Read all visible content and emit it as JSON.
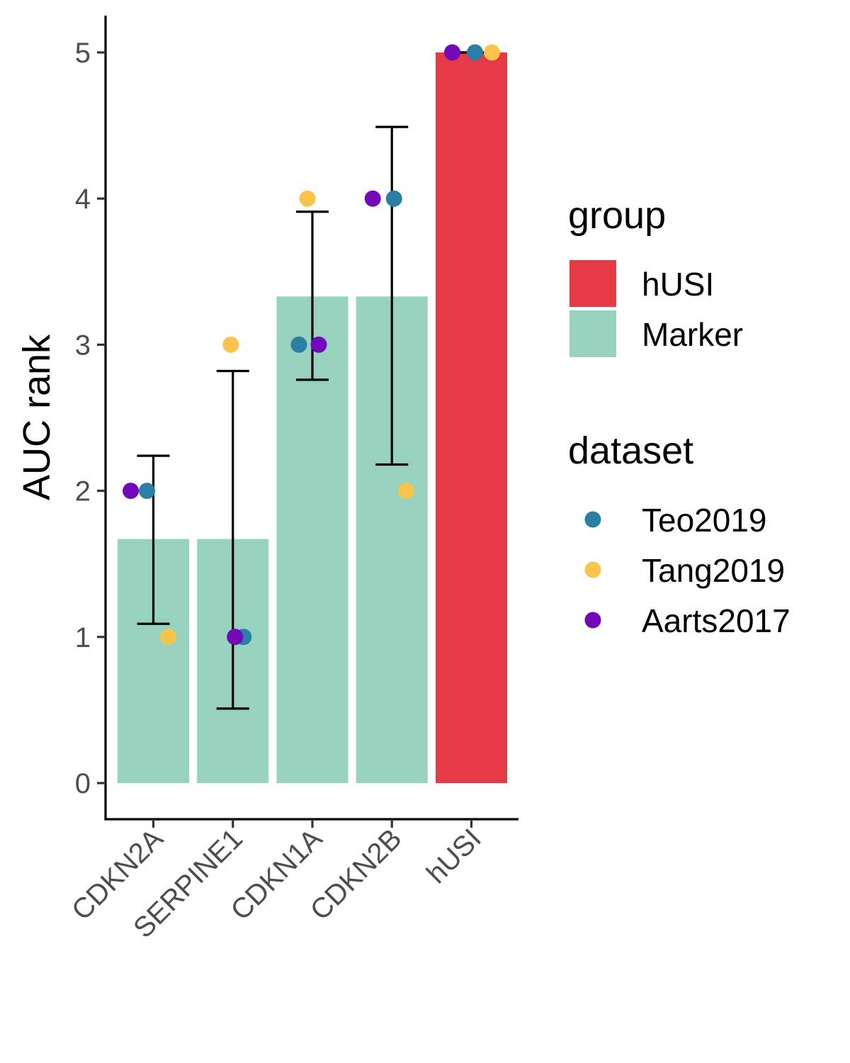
{
  "chart_data": {
    "type": "bar",
    "title": "",
    "xlabel": "",
    "ylabel": "AUC rank",
    "ylim": [
      0,
      5
    ],
    "yticks": [
      0,
      1,
      2,
      3,
      4,
      5
    ],
    "grid": false,
    "legend_position": "right",
    "categories": [
      "CDKN2A",
      "SERPINE1",
      "CDKN1A",
      "CDKN2B",
      "hUSI"
    ],
    "bars": [
      {
        "category": "CDKN2A",
        "value": 1.67,
        "group": "Marker",
        "error_low": 1.09,
        "error_high": 2.24
      },
      {
        "category": "SERPINE1",
        "value": 1.67,
        "group": "Marker",
        "error_low": 0.51,
        "error_high": 2.82
      },
      {
        "category": "CDKN1A",
        "value": 3.33,
        "group": "Marker",
        "error_low": 2.76,
        "error_high": 3.91
      },
      {
        "category": "CDKN2B",
        "value": 3.33,
        "group": "Marker",
        "error_low": 2.18,
        "error_high": 4.49
      },
      {
        "category": "hUSI",
        "value": 5,
        "group": "hUSI",
        "error_low": 5,
        "error_high": 5
      }
    ],
    "points": [
      {
        "category": "CDKN2A",
        "dataset": "Aarts2017",
        "value": 2
      },
      {
        "category": "CDKN2A",
        "dataset": "Teo2019",
        "value": 2
      },
      {
        "category": "CDKN2A",
        "dataset": "Tang2019",
        "value": 1
      },
      {
        "category": "SERPINE1",
        "dataset": "Tang2019",
        "value": 3
      },
      {
        "category": "SERPINE1",
        "dataset": "Teo2019",
        "value": 1
      },
      {
        "category": "SERPINE1",
        "dataset": "Aarts2017",
        "value": 1
      },
      {
        "category": "CDKN1A",
        "dataset": "Tang2019",
        "value": 4
      },
      {
        "category": "CDKN1A",
        "dataset": "Teo2019",
        "value": 3
      },
      {
        "category": "CDKN1A",
        "dataset": "Aarts2017",
        "value": 3
      },
      {
        "category": "CDKN2B",
        "dataset": "Aarts2017",
        "value": 4
      },
      {
        "category": "CDKN2B",
        "dataset": "Teo2019",
        "value": 4
      },
      {
        "category": "CDKN2B",
        "dataset": "Tang2019",
        "value": 2
      },
      {
        "category": "hUSI",
        "dataset": "Aarts2017",
        "value": 5
      },
      {
        "category": "hUSI",
        "dataset": "Teo2019",
        "value": 5
      },
      {
        "category": "hUSI",
        "dataset": "Tang2019",
        "value": 5
      }
    ],
    "legend": {
      "group": {
        "title": "group",
        "entries": [
          {
            "label": "hUSI",
            "color": "#e63946"
          },
          {
            "label": "Marker",
            "color": "#96d2bd"
          }
        ]
      },
      "dataset": {
        "title": "dataset",
        "entries": [
          {
            "label": "Teo2019",
            "color": "#2a7fa4"
          },
          {
            "label": "Tang2019",
            "color": "#fcc34c"
          },
          {
            "label": "Aarts2017",
            "color": "#7208b8"
          }
        ]
      }
    }
  }
}
